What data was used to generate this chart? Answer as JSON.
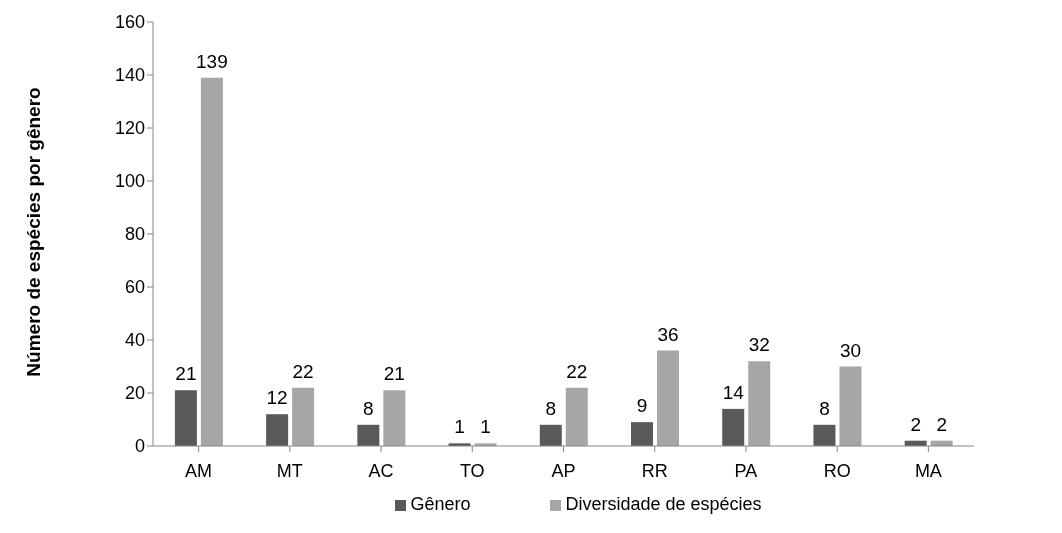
{
  "chart_data": {
    "type": "bar",
    "ylabel": "Número de espécies por gênero",
    "categories": [
      "AM",
      "MT",
      "AC",
      "TO",
      "AP",
      "RR",
      "PA",
      "RO",
      "MA"
    ],
    "series": [
      {
        "name": "Gênero",
        "color": "#595959",
        "values": [
          21,
          12,
          8,
          1,
          8,
          9,
          14,
          8,
          2
        ]
      },
      {
        "name": "Diversidade de espécies",
        "color": "#a6a6a6",
        "values": [
          139,
          22,
          21,
          1,
          22,
          36,
          32,
          30,
          2
        ]
      }
    ],
    "ylim": [
      0,
      160
    ],
    "yticks": [
      0,
      20,
      40,
      60,
      80,
      100,
      120,
      140,
      160
    ],
    "grid": false,
    "legend": "bottom",
    "data_labels": true
  }
}
